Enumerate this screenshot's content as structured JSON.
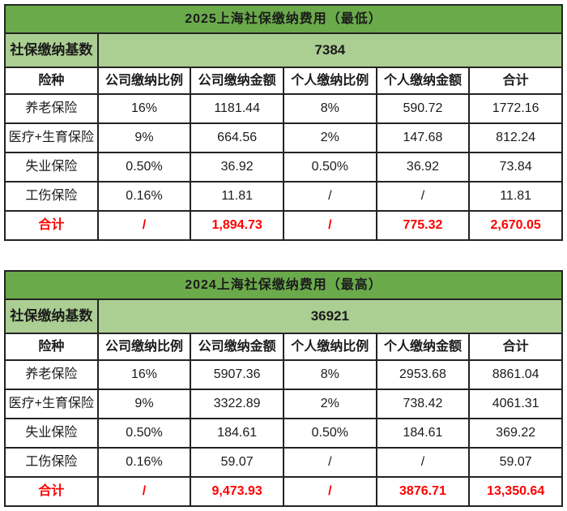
{
  "colors": {
    "title_green": "#6aaa4b",
    "base_light_green": "#abce92",
    "border": "#232323",
    "total_red": "#fe0000",
    "title_text": "#ffffff",
    "body_text": "#1b1b1b"
  },
  "chart_data": [
    {
      "type": "table",
      "title": "2025上海社保缴纳费用（最低）",
      "base": {
        "label": "社保缴纳基数",
        "value": "7384"
      },
      "columns": [
        "险种",
        "公司缴纳比例",
        "公司缴纳金额",
        "个人缴纳比例",
        "个人缴纳金额",
        "合计"
      ],
      "rows": [
        [
          "养老保险",
          "16%",
          "1181.44",
          "8%",
          "590.72",
          "1772.16"
        ],
        [
          "医疗+生育保险",
          "9%",
          "664.56",
          "2%",
          "147.68",
          "812.24"
        ],
        [
          "失业保险",
          "0.50%",
          "36.92",
          "0.50%",
          "36.92",
          "73.84"
        ],
        [
          "工伤保险",
          "0.16%",
          "11.81",
          "/",
          "/",
          "11.81"
        ]
      ],
      "total_row": [
        "合计",
        "/",
        "1,894.73",
        "/",
        "775.32",
        "2,670.05"
      ]
    },
    {
      "type": "table",
      "title": "2024上海社保缴纳费用（最高）",
      "base": {
        "label": "社保缴纳基数",
        "value": "36921"
      },
      "columns": [
        "险种",
        "公司缴纳比例",
        "公司缴纳金额",
        "个人缴纳比例",
        "个人缴纳金额",
        "合计"
      ],
      "rows": [
        [
          "养老保险",
          "16%",
          "5907.36",
          "8%",
          "2953.68",
          "8861.04"
        ],
        [
          "医疗+生育保险",
          "9%",
          "3322.89",
          "2%",
          "738.42",
          "4061.31"
        ],
        [
          "失业保险",
          "0.50%",
          "184.61",
          "0.50%",
          "184.61",
          "369.22"
        ],
        [
          "工伤保险",
          "0.16%",
          "59.07",
          "/",
          "/",
          "59.07"
        ]
      ],
      "total_row": [
        "合计",
        "/",
        "9,473.93",
        "/",
        "3876.71",
        "13,350.64"
      ]
    }
  ]
}
